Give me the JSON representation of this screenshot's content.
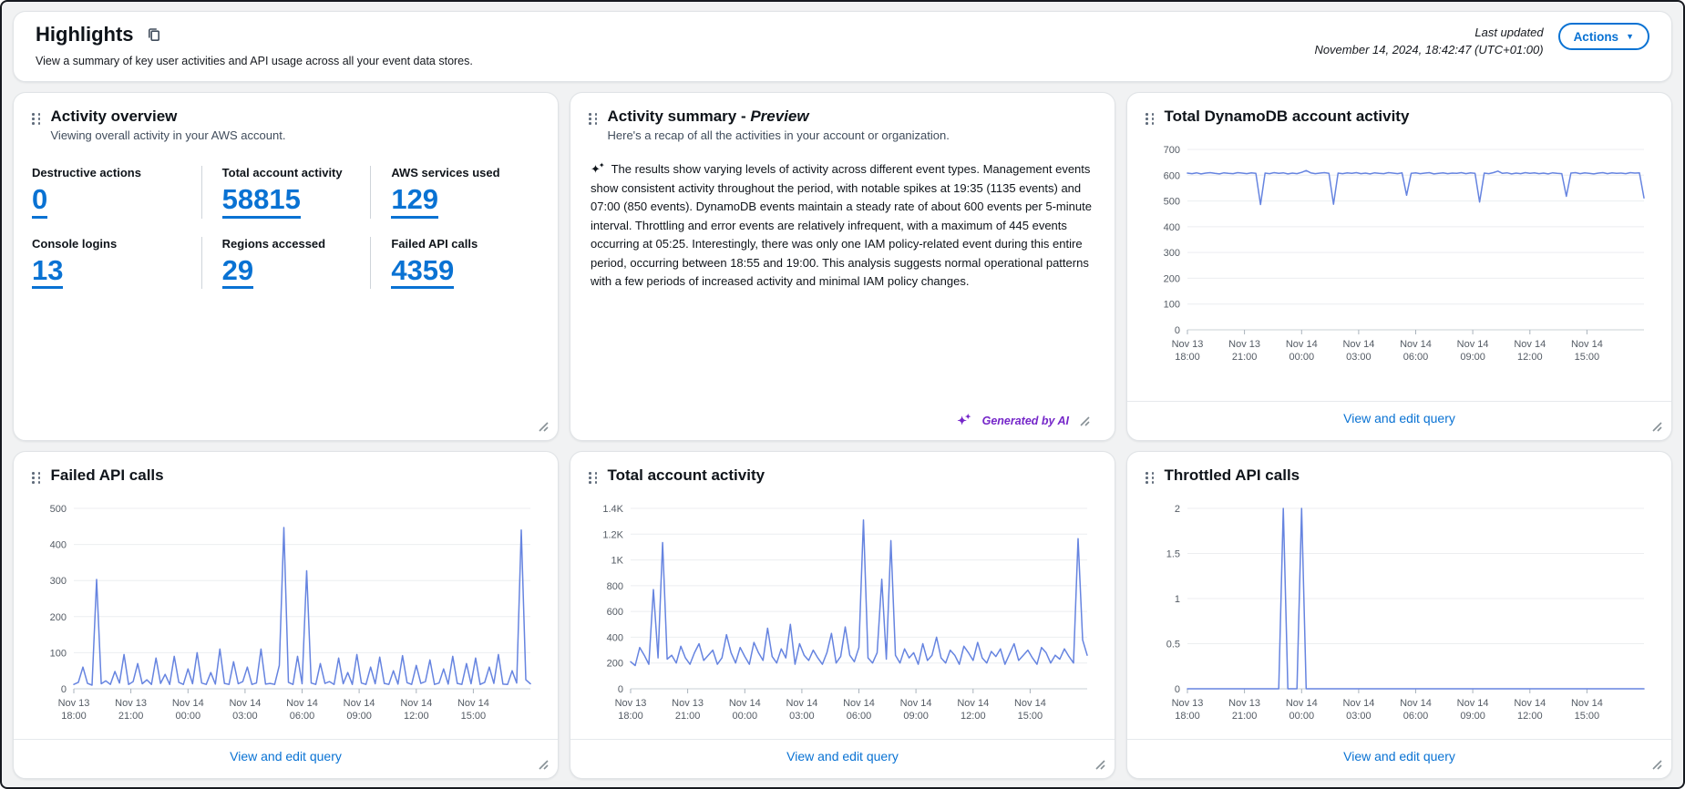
{
  "page": {
    "title": "Highlights",
    "subtitle": "View a summary of key user activities and API usage across all your event data stores.",
    "last_updated_label": "Last updated",
    "last_updated_value": "November 14, 2024, 18:42:47 (UTC+01:00)",
    "actions_button": "Actions",
    "colors": {
      "accent": "#0972d3",
      "chart_line": "#6684e0",
      "ai_purple": "#7526c9"
    }
  },
  "widgets": {
    "footer_link": "View and edit query"
  },
  "activity_overview": {
    "title": "Activity overview",
    "subtitle": "Viewing overall activity in your AWS account.",
    "metrics": [
      {
        "label": "Destructive actions",
        "value": "0"
      },
      {
        "label": "Total account activity",
        "value": "58815"
      },
      {
        "label": "AWS services used",
        "value": "129"
      },
      {
        "label": "Console logins",
        "value": "13"
      },
      {
        "label": "Regions accessed",
        "value": "29"
      },
      {
        "label": "Failed API calls",
        "value": "4359"
      }
    ]
  },
  "activity_summary": {
    "title_prefix": "Activity summary - ",
    "title_preview": "Preview",
    "subtitle": "Here's a recap of all the activities in your account or organization.",
    "body": "The results show varying levels of activity across different event types. Management events show consistent activity throughout the period, with notable spikes at 19:35 (1135 events) and 07:00 (850 events). DynamoDB events maintain a steady rate of about 600 events per 5-minute interval. Throttling and error events are relatively infrequent, with a maximum of 445 events occurring at 05:25. Interestingly, there was only one IAM policy-related event during this entire period, occurring between 18:55 and 19:00. This analysis suggests normal operational patterns with a few periods of increased activity and minimal IAM policy changes.",
    "generated_by": "Generated by AI"
  },
  "chart_data": [
    {
      "id": "dynamodb-activity",
      "type": "line",
      "title": "Total DynamoDB account activity",
      "ylim": [
        0,
        700
      ],
      "y_ticks": [
        0,
        100,
        200,
        300,
        400,
        500,
        600,
        700
      ],
      "y_tick_labels": [
        "0",
        "100",
        "200",
        "300",
        "400",
        "500",
        "600",
        "700"
      ],
      "x_ticks": [
        {
          "top": "Nov 13",
          "bottom": "18:00"
        },
        {
          "top": "Nov 13",
          "bottom": "21:00"
        },
        {
          "top": "Nov 14",
          "bottom": "00:00"
        },
        {
          "top": "Nov 14",
          "bottom": "03:00"
        },
        {
          "top": "Nov 14",
          "bottom": "06:00"
        },
        {
          "top": "Nov 14",
          "bottom": "09:00"
        },
        {
          "top": "Nov 14",
          "bottom": "12:00"
        },
        {
          "top": "Nov 14",
          "bottom": "15:00"
        }
      ],
      "values": [
        608,
        606,
        609,
        605,
        608,
        610,
        607,
        605,
        609,
        607,
        606,
        610,
        608,
        606,
        609,
        607,
        486,
        608,
        606,
        610,
        607,
        609,
        605,
        608,
        606,
        611,
        618,
        609,
        606,
        608,
        610,
        607,
        487,
        608,
        606,
        609,
        607,
        610,
        606,
        608,
        605,
        609,
        607,
        606,
        610,
        608,
        606,
        609,
        522,
        607,
        609,
        606,
        608,
        610,
        605,
        607,
        609,
        606,
        608,
        607,
        610,
        606,
        609,
        607,
        496,
        608,
        606,
        610,
        616,
        607,
        609,
        605,
        608,
        606,
        610,
        607,
        609,
        606,
        608,
        605,
        609,
        607,
        606,
        518,
        608,
        610,
        606,
        609,
        607,
        605,
        608,
        610,
        606,
        609,
        607,
        608,
        606,
        610,
        608,
        609,
        512
      ]
    },
    {
      "id": "failed-api-calls",
      "type": "line",
      "title": "Failed API calls",
      "ylim": [
        0,
        500
      ],
      "y_ticks": [
        0,
        100,
        200,
        300,
        400,
        500
      ],
      "y_tick_labels": [
        "0",
        "100",
        "200",
        "300",
        "400",
        "500"
      ],
      "x_ticks": [
        {
          "top": "Nov 13",
          "bottom": "18:00"
        },
        {
          "top": "Nov 13",
          "bottom": "21:00"
        },
        {
          "top": "Nov 14",
          "bottom": "00:00"
        },
        {
          "top": "Nov 14",
          "bottom": "03:00"
        },
        {
          "top": "Nov 14",
          "bottom": "06:00"
        },
        {
          "top": "Nov 14",
          "bottom": "09:00"
        },
        {
          "top": "Nov 14",
          "bottom": "12:00"
        },
        {
          "top": "Nov 14",
          "bottom": "15:00"
        }
      ],
      "values": [
        12,
        18,
        60,
        15,
        10,
        303,
        14,
        22,
        12,
        48,
        16,
        95,
        12,
        20,
        70,
        14,
        25,
        12,
        85,
        15,
        40,
        12,
        90,
        18,
        12,
        55,
        14,
        100,
        16,
        12,
        45,
        13,
        110,
        15,
        12,
        75,
        14,
        20,
        60,
        12,
        16,
        110,
        13,
        15,
        12,
        65,
        447,
        18,
        12,
        90,
        14,
        327,
        16,
        12,
        70,
        15,
        20,
        12,
        85,
        14,
        45,
        12,
        95,
        16,
        12,
        60,
        14,
        88,
        15,
        12,
        50,
        13,
        92,
        17,
        12,
        65,
        15,
        20,
        80,
        12,
        16,
        55,
        13,
        90,
        15,
        12,
        70,
        14,
        85,
        12,
        18,
        60,
        15,
        95,
        13,
        12,
        50,
        16,
        440,
        25,
        14
      ]
    },
    {
      "id": "total-account-activity",
      "type": "line",
      "title": "Total account activity",
      "ylim": [
        0,
        1400
      ],
      "y_ticks": [
        0,
        200,
        400,
        600,
        800,
        1000,
        1200,
        1400
      ],
      "y_tick_labels": [
        "0",
        "200",
        "400",
        "600",
        "800",
        "1K",
        "1.2K",
        "1.4K"
      ],
      "x_ticks": [
        {
          "top": "Nov 13",
          "bottom": "18:00"
        },
        {
          "top": "Nov 13",
          "bottom": "21:00"
        },
        {
          "top": "Nov 14",
          "bottom": "00:00"
        },
        {
          "top": "Nov 14",
          "bottom": "03:00"
        },
        {
          "top": "Nov 14",
          "bottom": "06:00"
        },
        {
          "top": "Nov 14",
          "bottom": "09:00"
        },
        {
          "top": "Nov 14",
          "bottom": "12:00"
        },
        {
          "top": "Nov 14",
          "bottom": "15:00"
        }
      ],
      "values": [
        210,
        180,
        320,
        260,
        190,
        770,
        240,
        1135,
        230,
        260,
        200,
        330,
        240,
        190,
        280,
        350,
        220,
        260,
        300,
        190,
        240,
        420,
        280,
        200,
        320,
        250,
        190,
        360,
        280,
        220,
        470,
        250,
        200,
        310,
        240,
        500,
        190,
        350,
        260,
        220,
        300,
        240,
        190,
        280,
        430,
        200,
        250,
        480,
        260,
        210,
        320,
        1310,
        240,
        200,
        280,
        850,
        230,
        1150,
        260,
        200,
        310,
        240,
        280,
        190,
        350,
        220,
        260,
        400,
        240,
        200,
        300,
        260,
        190,
        330,
        280,
        220,
        360,
        240,
        200,
        290,
        250,
        310,
        190,
        270,
        350,
        220,
        260,
        300,
        240,
        190,
        320,
        280,
        200,
        260,
        230,
        310,
        250,
        200,
        1165,
        380,
        260
      ]
    },
    {
      "id": "throttled-api-calls",
      "type": "line",
      "title": "Throttled API calls",
      "ylim": [
        0,
        2
      ],
      "y_ticks": [
        0,
        0.5,
        1,
        1.5,
        2
      ],
      "y_tick_labels": [
        "0",
        "0.5",
        "1",
        "1.5",
        "2"
      ],
      "x_ticks": [
        {
          "top": "Nov 13",
          "bottom": "18:00"
        },
        {
          "top": "Nov 13",
          "bottom": "21:00"
        },
        {
          "top": "Nov 14",
          "bottom": "00:00"
        },
        {
          "top": "Nov 14",
          "bottom": "03:00"
        },
        {
          "top": "Nov 14",
          "bottom": "06:00"
        },
        {
          "top": "Nov 14",
          "bottom": "09:00"
        },
        {
          "top": "Nov 14",
          "bottom": "12:00"
        },
        {
          "top": "Nov 14",
          "bottom": "15:00"
        }
      ],
      "values": [
        0,
        0,
        0,
        0,
        0,
        0,
        0,
        0,
        0,
        0,
        0,
        0,
        0,
        0,
        0,
        0,
        0,
        0,
        0,
        0,
        0,
        2,
        0,
        0,
        0,
        2,
        0,
        0,
        0,
        0,
        0,
        0,
        0,
        0,
        0,
        0,
        0,
        0,
        0,
        0,
        0,
        0,
        0,
        0,
        0,
        0,
        0,
        0,
        0,
        0,
        0,
        0,
        0,
        0,
        0,
        0,
        0,
        0,
        0,
        0,
        0,
        0,
        0,
        0,
        0,
        0,
        0,
        0,
        0,
        0,
        0,
        0,
        0,
        0,
        0,
        0,
        0,
        0,
        0,
        0,
        0,
        0,
        0,
        0,
        0,
        0,
        0,
        0,
        0,
        0,
        0,
        0,
        0,
        0,
        0,
        0,
        0,
        0,
        0,
        0,
        0
      ]
    }
  ]
}
